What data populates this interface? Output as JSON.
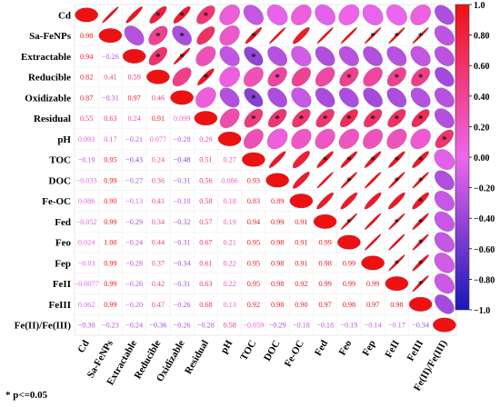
{
  "chart_data": {
    "type": "heatmap",
    "variables": [
      "Cd",
      "Sa-FeNPs",
      "Extractable",
      "Reducible",
      "Oxidizable",
      "Residual",
      "pH",
      "TOC",
      "DOC",
      "Fe-OC",
      "Fed",
      "Feo",
      "Fep",
      "FeII",
      "FeIII",
      "Fe(II)/Fe(III)"
    ],
    "correlations": [
      [
        "Sa-FeNPs",
        "Cd",
        0.98
      ],
      [
        "Extractable",
        "Cd",
        0.94
      ],
      [
        "Extractable",
        "Sa-FeNPs",
        -0.26
      ],
      [
        "Reducible",
        "Cd",
        0.82
      ],
      [
        "Reducible",
        "Sa-FeNPs",
        0.41
      ],
      [
        "Reducible",
        "Extractable",
        0.59
      ],
      [
        "Oxidizable",
        "Cd",
        0.87
      ],
      [
        "Oxidizable",
        "Sa-FeNPs",
        -0.31
      ],
      [
        "Oxidizable",
        "Extractable",
        0.97
      ],
      [
        "Oxidizable",
        "Reducible",
        0.46
      ],
      [
        "Residual",
        "Cd",
        0.55
      ],
      [
        "Residual",
        "Sa-FeNPs",
        0.63
      ],
      [
        "Residual",
        "Extractable",
        0.24
      ],
      [
        "Residual",
        "Reducible",
        0.91
      ],
      [
        "Residual",
        "Oxidizable",
        0.099
      ],
      [
        "pH",
        "Cd",
        0.093
      ],
      [
        "pH",
        "Sa-FeNPs",
        0.17
      ],
      [
        "pH",
        "Extractable",
        -0.21
      ],
      [
        "pH",
        "Reducible",
        0.077
      ],
      [
        "pH",
        "Oxidizable",
        -0.28
      ],
      [
        "pH",
        "Residual",
        0.29
      ],
      [
        "TOC",
        "Cd",
        -0.19
      ],
      [
        "TOC",
        "Sa-FeNPs",
        0.95
      ],
      [
        "TOC",
        "Extractable",
        -0.43
      ],
      [
        "TOC",
        "Reducible",
        0.24
      ],
      [
        "TOC",
        "Oxidizable",
        -0.48
      ],
      [
        "TOC",
        "Residual",
        0.51
      ],
      [
        "TOC",
        "pH",
        0.27
      ],
      [
        "DOC",
        "Cd",
        -0.033
      ],
      [
        "DOC",
        "Sa-FeNPs",
        0.99
      ],
      [
        "DOC",
        "Extractable",
        -0.27
      ],
      [
        "DOC",
        "Reducible",
        0.36
      ],
      [
        "DOC",
        "Oxidizable",
        -0.31
      ],
      [
        "DOC",
        "Residual",
        0.56
      ],
      [
        "DOC",
        "pH",
        0.086
      ],
      [
        "DOC",
        "TOC",
        0.93
      ],
      [
        "Fe-OC",
        "Cd",
        0.086
      ],
      [
        "Fe-OC",
        "Sa-FeNPs",
        0.9
      ],
      [
        "Fe-OC",
        "Extractable",
        -0.13
      ],
      [
        "Fe-OC",
        "Reducible",
        0.41
      ],
      [
        "Fe-OC",
        "Oxidizable",
        -0.18
      ],
      [
        "Fe-OC",
        "Residual",
        0.58
      ],
      [
        "Fe-OC",
        "pH",
        0.18
      ],
      [
        "Fe-OC",
        "TOC",
        0.83
      ],
      [
        "Fe-OC",
        "DOC",
        0.89
      ],
      [
        "Fed",
        "Cd",
        -0.052
      ],
      [
        "Fed",
        "Sa-FeNPs",
        0.99
      ],
      [
        "Fed",
        "Extractable",
        -0.29
      ],
      [
        "Fed",
        "Reducible",
        0.34
      ],
      [
        "Fed",
        "Oxidizable",
        -0.32
      ],
      [
        "Fed",
        "Residual",
        0.57
      ],
      [
        "Fed",
        "pH",
        0.19
      ],
      [
        "Fed",
        "TOC",
        0.94
      ],
      [
        "Fed",
        "DOC",
        0.99
      ],
      [
        "Fed",
        "Fe-OC",
        0.91
      ],
      [
        "Feo",
        "Cd",
        0.024
      ],
      [
        "Feo",
        "Sa-FeNPs",
        1.0
      ],
      [
        "Feo",
        "Extractable",
        -0.24
      ],
      [
        "Feo",
        "Reducible",
        0.44
      ],
      [
        "Feo",
        "Oxidizable",
        -0.31
      ],
      [
        "Feo",
        "Residual",
        0.67
      ],
      [
        "Feo",
        "pH",
        0.21
      ],
      [
        "Feo",
        "TOC",
        0.95
      ],
      [
        "Feo",
        "DOC",
        0.98
      ],
      [
        "Feo",
        "Fe-OC",
        0.91
      ],
      [
        "Feo",
        "Fed",
        0.99
      ],
      [
        "Fep",
        "Cd",
        -0.03
      ],
      [
        "Fep",
        "Sa-FeNPs",
        0.99
      ],
      [
        "Fep",
        "Extractable",
        -0.28
      ],
      [
        "Fep",
        "Reducible",
        0.37
      ],
      [
        "Fep",
        "Oxidizable",
        -0.34
      ],
      [
        "Fep",
        "Residual",
        0.61
      ],
      [
        "Fep",
        "pH",
        0.22
      ],
      [
        "Fep",
        "TOC",
        0.95
      ],
      [
        "Fep",
        "DOC",
        0.98
      ],
      [
        "Fep",
        "Fe-OC",
        0.91
      ],
      [
        "Fep",
        "Fed",
        0.98
      ],
      [
        "Fep",
        "Feo",
        0.99
      ],
      [
        "FeII",
        "Cd",
        -0.0077
      ],
      [
        "FeII",
        "Sa-FeNPs",
        0.99
      ],
      [
        "FeII",
        "Extractable",
        -0.26
      ],
      [
        "FeII",
        "Reducible",
        0.42
      ],
      [
        "FeII",
        "Oxidizable",
        -0.31
      ],
      [
        "FeII",
        "Residual",
        0.63
      ],
      [
        "FeII",
        "pH",
        0.22
      ],
      [
        "FeII",
        "TOC",
        0.95
      ],
      [
        "FeII",
        "DOC",
        0.98
      ],
      [
        "FeII",
        "Fe-OC",
        0.92
      ],
      [
        "FeII",
        "Fed",
        0.99
      ],
      [
        "FeII",
        "Feo",
        0.99
      ],
      [
        "FeII",
        "Fep",
        0.99
      ],
      [
        "FeIII",
        "Cd",
        0.062
      ],
      [
        "FeIII",
        "Sa-FeNPs",
        0.99
      ],
      [
        "FeIII",
        "Extractable",
        -0.2
      ],
      [
        "FeIII",
        "Reducible",
        0.47
      ],
      [
        "FeIII",
        "Oxidizable",
        -0.26
      ],
      [
        "FeIII",
        "Residual",
        0.68
      ],
      [
        "FeIII",
        "pH",
        0.13
      ],
      [
        "FeIII",
        "TOC",
        0.92
      ],
      [
        "FeIII",
        "DOC",
        0.98
      ],
      [
        "FeIII",
        "Fe-OC",
        0.9
      ],
      [
        "FeIII",
        "Fed",
        0.97
      ],
      [
        "FeIII",
        "Feo",
        0.98
      ],
      [
        "FeIII",
        "Fep",
        0.97
      ],
      [
        "FeIII",
        "FeII",
        0.98
      ],
      [
        "Fe(II)/Fe(III)",
        "Cd",
        -0.3
      ],
      [
        "Fe(II)/Fe(III)",
        "Sa-FeNPs",
        -0.23
      ],
      [
        "Fe(II)/Fe(III)",
        "Extractable",
        -0.24
      ],
      [
        "Fe(II)/Fe(III)",
        "Reducible",
        -0.36
      ],
      [
        "Fe(II)/Fe(III)",
        "Oxidizable",
        -0.26
      ],
      [
        "Fe(II)/Fe(III)",
        "Residual",
        -0.28
      ],
      [
        "Fe(II)/Fe(III)",
        "pH",
        0.58
      ],
      [
        "Fe(II)/Fe(III)",
        "TOC",
        -0.059
      ],
      [
        "Fe(II)/Fe(III)",
        "DOC",
        -0.29
      ],
      [
        "Fe(II)/Fe(III)",
        "Fe-OC",
        -0.18
      ],
      [
        "Fe(II)/Fe(III)",
        "Fed",
        -0.18
      ],
      [
        "Fe(II)/Fe(III)",
        "Feo",
        -0.19
      ],
      [
        "Fe(II)/Fe(III)",
        "Fep",
        -0.14
      ],
      [
        "Fe(II)/Fe(III)",
        "FeII",
        -0.17
      ],
      [
        "Fe(II)/Fe(III)",
        "FeIII",
        -0.34
      ]
    ],
    "significant_upper": [
      [
        "Cd",
        "Reducible"
      ],
      [
        "Cd",
        "Oxidizable"
      ],
      [
        "Cd",
        "Residual"
      ],
      [
        "Sa-FeNPs",
        "Reducible"
      ],
      [
        "Sa-FeNPs",
        "Oxidizable"
      ],
      [
        "Sa-FeNPs",
        "TOC"
      ],
      [
        "Sa-FeNPs",
        "Fep"
      ],
      [
        "Sa-FeNPs",
        "FeII"
      ],
      [
        "Sa-FeNPs",
        "FeIII"
      ],
      [
        "Extractable",
        "Reducible"
      ],
      [
        "Extractable",
        "Oxidizable"
      ],
      [
        "Extractable",
        "TOC"
      ],
      [
        "Reducible",
        "Residual"
      ],
      [
        "Reducible",
        "DOC"
      ],
      [
        "Reducible",
        "Feo"
      ],
      [
        "Reducible",
        "FeII"
      ],
      [
        "Reducible",
        "FeIII"
      ],
      [
        "Oxidizable",
        "TOC"
      ],
      [
        "Residual",
        "TOC"
      ],
      [
        "Residual",
        "DOC"
      ],
      [
        "Residual",
        "Fe-OC"
      ],
      [
        "Residual",
        "Fed"
      ],
      [
        "Residual",
        "Feo"
      ],
      [
        "Residual",
        "Fep"
      ],
      [
        "Residual",
        "FeII"
      ],
      [
        "Residual",
        "FeIII"
      ],
      [
        "pH",
        "Fe(II)/Fe(III)"
      ],
      [
        "TOC",
        "Fed"
      ],
      [
        "TOC",
        "Feo"
      ],
      [
        "TOC",
        "Fep"
      ],
      [
        "TOC",
        "FeII"
      ],
      [
        "TOC",
        "FeIII"
      ],
      [
        "DOC",
        "Feo"
      ],
      [
        "DOC",
        "FeII"
      ],
      [
        "DOC",
        "FeIII"
      ],
      [
        "Fe-OC",
        "FeIII"
      ],
      [
        "Fed",
        "Feo"
      ],
      [
        "Fed",
        "FeII"
      ],
      [
        "Fed",
        "FeIII"
      ],
      [
        "Feo",
        "FeIII"
      ],
      [
        "Fep",
        "FeII"
      ],
      [
        "Fep",
        "FeIII"
      ],
      [
        "FeII",
        "FeIII"
      ]
    ],
    "colorbar": {
      "range": [
        -1.0,
        1.0
      ],
      "ticks": [
        1.0,
        0.8,
        0.6,
        0.4,
        0.2,
        0.0,
        -0.2,
        -0.4,
        -0.6,
        -0.8,
        -1.0
      ],
      "tick_labels": [
        "1.0",
        "0.80",
        "0.60",
        "0.40",
        "0.20",
        "0.00",
        "−0.20",
        "−0.40",
        "−0.60",
        "−0.80",
        "−1.0"
      ],
      "colors": {
        "negative": "#1818b8",
        "zero": "#ee66ee",
        "positive": "#ee1111"
      }
    },
    "significance_marker": "*",
    "footnote": "* p<=0.05"
  }
}
